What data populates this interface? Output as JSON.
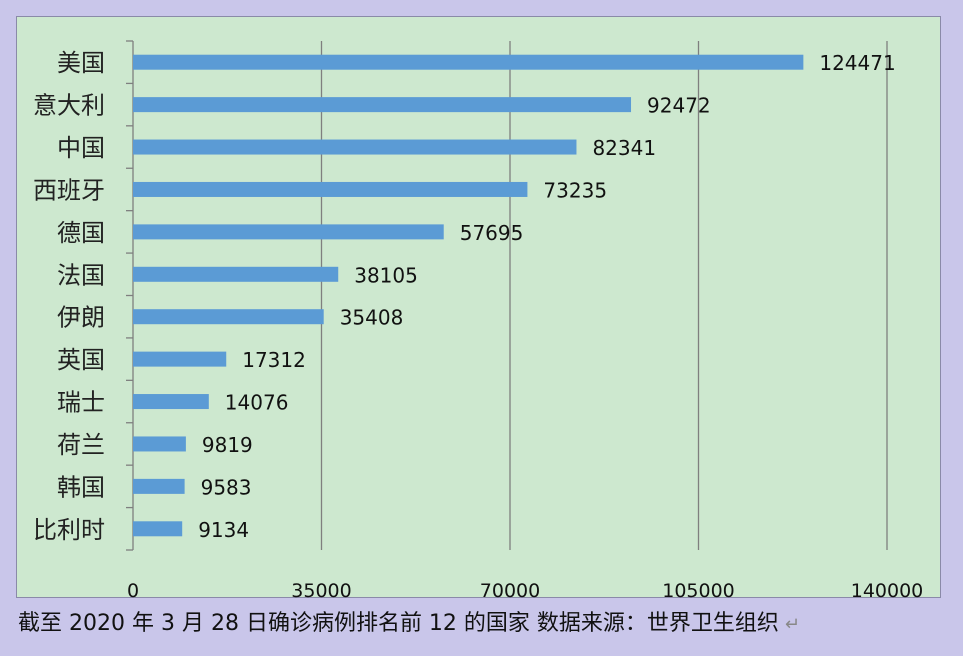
{
  "chart_data": {
    "type": "bar",
    "orientation": "horizontal",
    "categories": [
      "美国",
      "意大利",
      "中国",
      "西班牙",
      "德国",
      "法国",
      "伊朗",
      "英国",
      "瑞士",
      "荷兰",
      "韩国",
      "比利时"
    ],
    "values": [
      124471,
      92472,
      82341,
      73235,
      57695,
      38105,
      35408,
      17312,
      14076,
      9819,
      9583,
      9134
    ],
    "xlim": [
      0,
      140000
    ],
    "xticks": [
      0,
      35000,
      70000,
      105000,
      140000
    ],
    "grid": true,
    "bar_color": "#5b9bd5",
    "background_color": "#cde8cf"
  },
  "caption": {
    "text": "截至 2020 年 3 月 28 日确诊病例排名前 12 的国家 数据来源：世界卫生组织",
    "return_symbol": "↵"
  }
}
